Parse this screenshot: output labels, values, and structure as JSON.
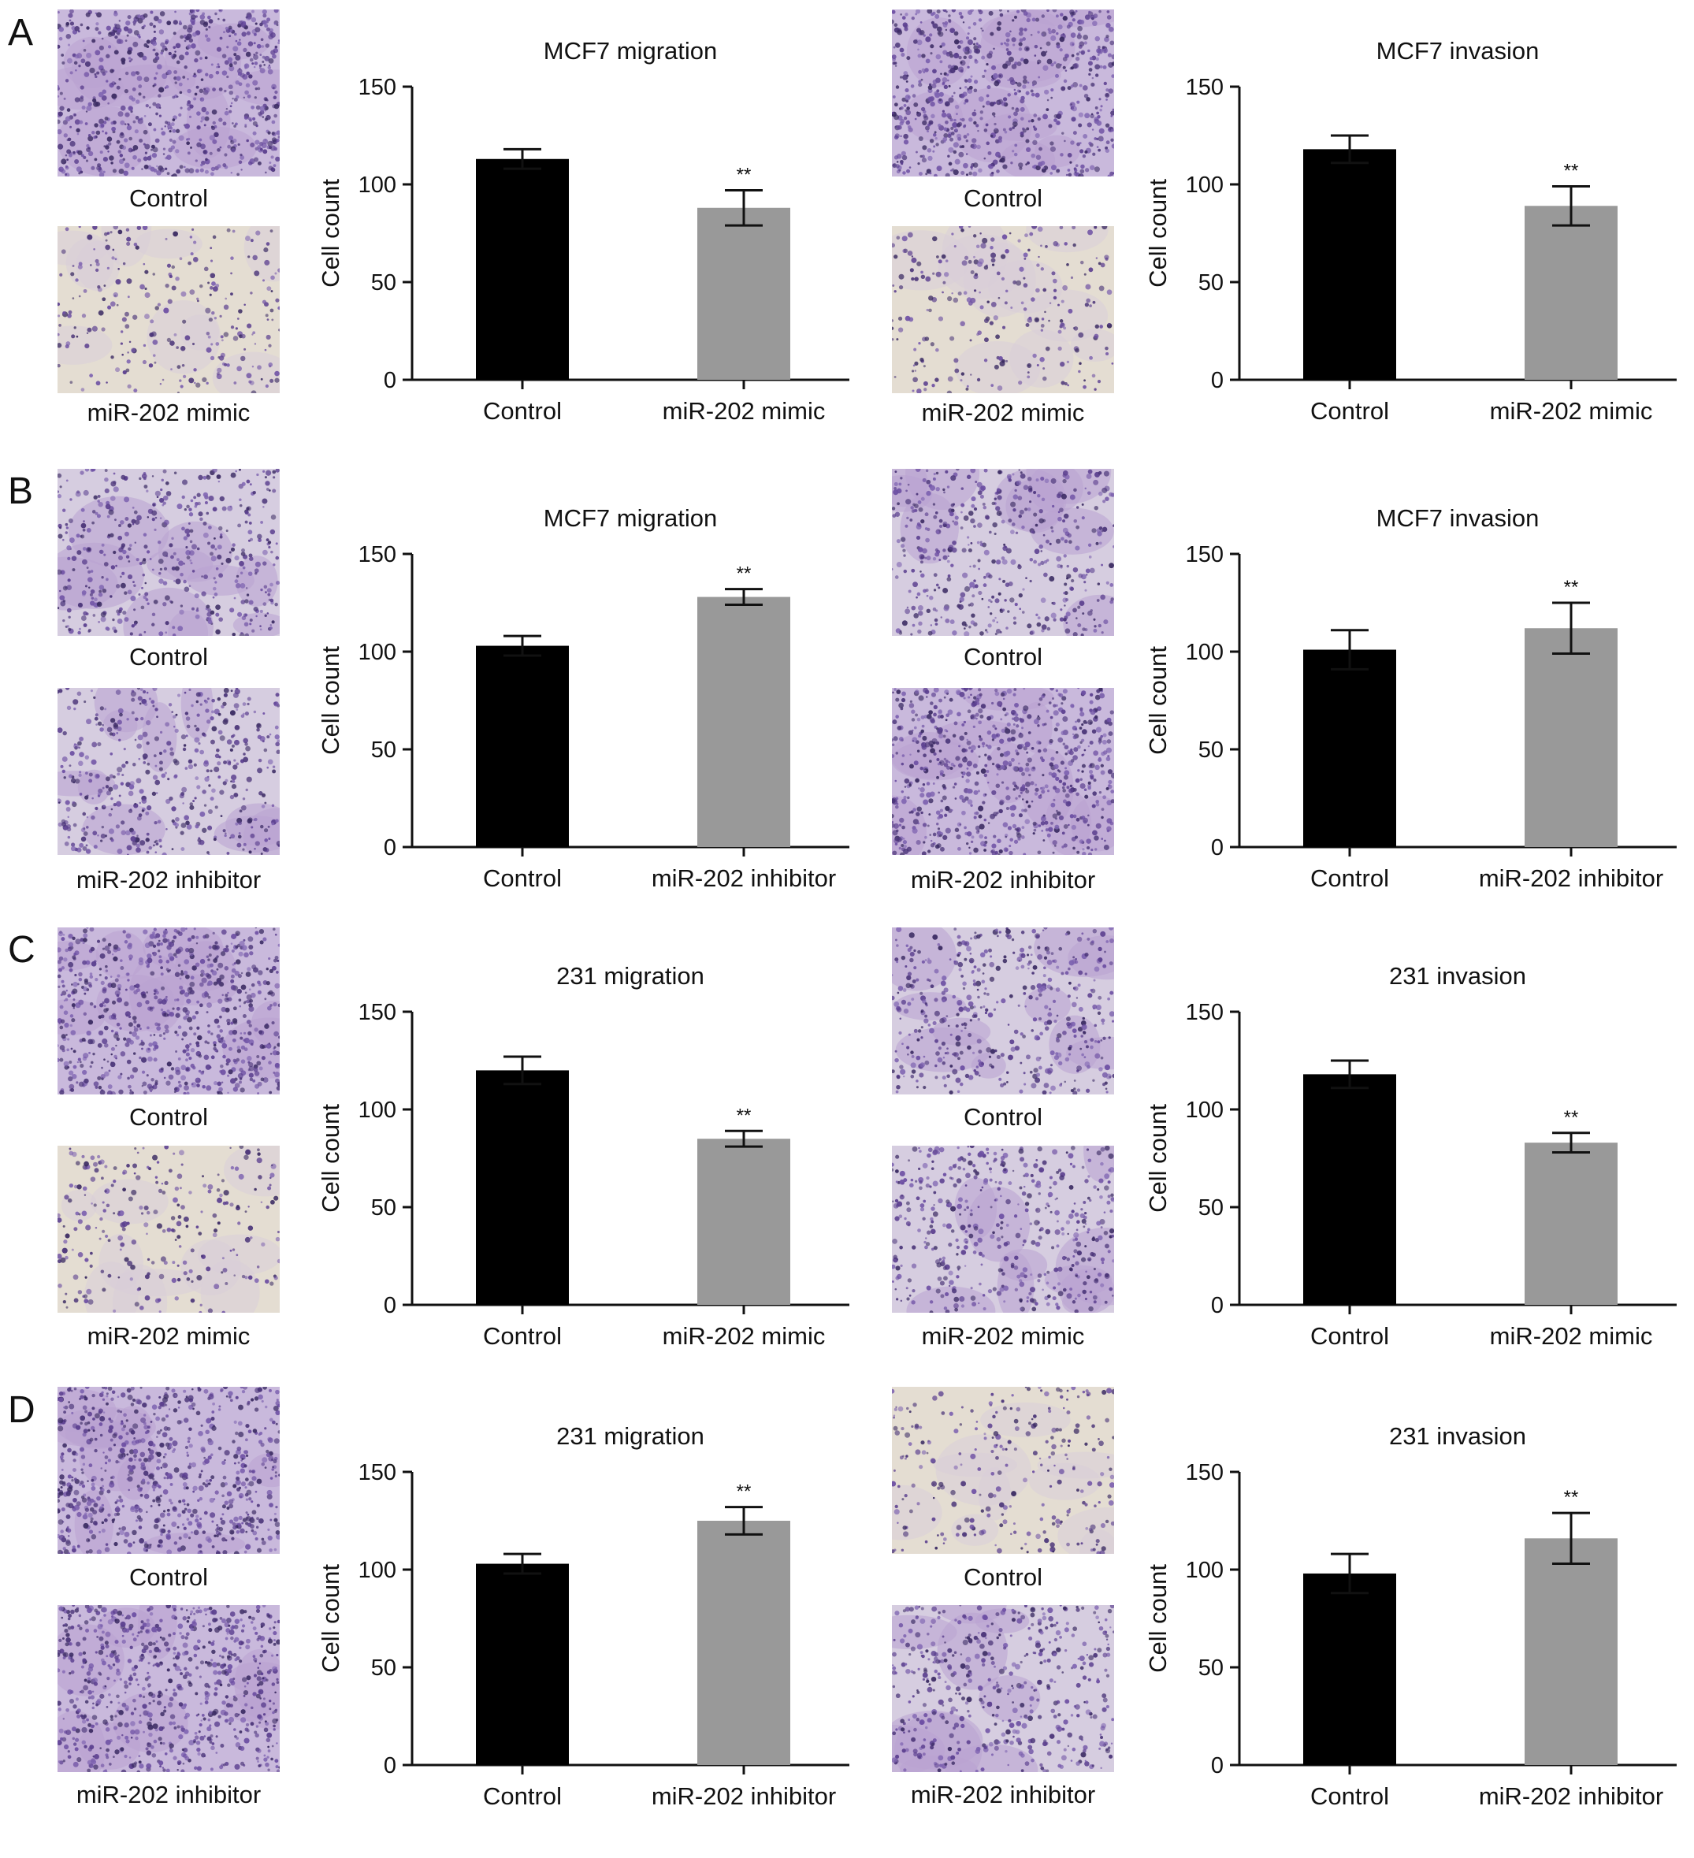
{
  "panels": [
    {
      "letter": "A",
      "images": [
        {
          "caption": "Control",
          "shade": "dense"
        },
        {
          "caption": "miR-202 mimic",
          "shade": "sparse"
        },
        {
          "caption": "Control",
          "shade": "dense"
        },
        {
          "caption": "miR-202 mimic",
          "shade": "sparse"
        }
      ]
    },
    {
      "letter": "B",
      "images": [
        {
          "caption": "Control",
          "shade": "medium"
        },
        {
          "caption": "miR-202 inhibitor",
          "shade": "medium"
        },
        {
          "caption": "Control",
          "shade": "medium"
        },
        {
          "caption": "miR-202 inhibitor",
          "shade": "dense"
        }
      ]
    },
    {
      "letter": "C",
      "images": [
        {
          "caption": "Control",
          "shade": "dense"
        },
        {
          "caption": "miR-202 mimic",
          "shade": "sparse"
        },
        {
          "caption": "Control",
          "shade": "medium"
        },
        {
          "caption": "miR-202 mimic",
          "shade": "medium"
        }
      ]
    },
    {
      "letter": "D",
      "images": [
        {
          "caption": "Control",
          "shade": "dense"
        },
        {
          "caption": "miR-202 inhibitor",
          "shade": "dense"
        },
        {
          "caption": "Control",
          "shade": "sparse"
        },
        {
          "caption": "miR-202 inhibitor",
          "shade": "medium"
        }
      ]
    }
  ],
  "chart_data": [
    {
      "type": "bar",
      "panel": "A",
      "title": "MCF7 migration",
      "ylabel": "Cell count",
      "ylim": [
        0,
        150
      ],
      "yticks": [
        0,
        50,
        100,
        150
      ],
      "categories": [
        "Control",
        "miR-202 mimic"
      ],
      "values": [
        113,
        88
      ],
      "errors": [
        5,
        9
      ],
      "colors": [
        "#000000",
        "#999999"
      ],
      "significance": [
        "",
        "**"
      ]
    },
    {
      "type": "bar",
      "panel": "A",
      "title": "MCF7 invasion",
      "ylabel": "Cell count",
      "ylim": [
        0,
        150
      ],
      "yticks": [
        0,
        50,
        100,
        150
      ],
      "categories": [
        "Control",
        "miR-202 mimic"
      ],
      "values": [
        118,
        89
      ],
      "errors": [
        7,
        10
      ],
      "colors": [
        "#000000",
        "#999999"
      ],
      "significance": [
        "",
        "**"
      ]
    },
    {
      "type": "bar",
      "panel": "B",
      "title": "MCF7 migration",
      "ylabel": "Cell count",
      "ylim": [
        0,
        150
      ],
      "yticks": [
        0,
        50,
        100,
        150
      ],
      "categories": [
        "Control",
        "miR-202 inhibitor"
      ],
      "values": [
        103,
        128
      ],
      "errors": [
        5,
        4
      ],
      "colors": [
        "#000000",
        "#999999"
      ],
      "significance": [
        "",
        "**"
      ]
    },
    {
      "type": "bar",
      "panel": "B",
      "title": "MCF7 invasion",
      "ylabel": "Cell count",
      "ylim": [
        0,
        150
      ],
      "yticks": [
        0,
        50,
        100,
        150
      ],
      "categories": [
        "Control",
        "miR-202 inhibitor"
      ],
      "values": [
        101,
        112
      ],
      "errors": [
        10,
        13
      ],
      "colors": [
        "#000000",
        "#999999"
      ],
      "significance": [
        "",
        "**"
      ]
    },
    {
      "type": "bar",
      "panel": "C",
      "title": "231 migration",
      "ylabel": "Cell count",
      "ylim": [
        0,
        150
      ],
      "yticks": [
        0,
        50,
        100,
        150
      ],
      "categories": [
        "Control",
        "miR-202 mimic"
      ],
      "values": [
        120,
        85
      ],
      "errors": [
        7,
        4
      ],
      "colors": [
        "#000000",
        "#999999"
      ],
      "significance": [
        "",
        "**"
      ]
    },
    {
      "type": "bar",
      "panel": "C",
      "title": "231 invasion",
      "ylabel": "Cell count",
      "ylim": [
        0,
        150
      ],
      "yticks": [
        0,
        50,
        100,
        150
      ],
      "categories": [
        "Control",
        "miR-202 mimic"
      ],
      "values": [
        118,
        83
      ],
      "errors": [
        7,
        5
      ],
      "colors": [
        "#000000",
        "#999999"
      ],
      "significance": [
        "",
        "**"
      ]
    },
    {
      "type": "bar",
      "panel": "D",
      "title": "231 migration",
      "ylabel": "Cell count",
      "ylim": [
        0,
        150
      ],
      "yticks": [
        0,
        50,
        100,
        150
      ],
      "categories": [
        "Control",
        "miR-202 inhibitor"
      ],
      "values": [
        103,
        125
      ],
      "errors": [
        5,
        7
      ],
      "colors": [
        "#000000",
        "#999999"
      ],
      "significance": [
        "",
        "**"
      ]
    },
    {
      "type": "bar",
      "panel": "D",
      "title": "231 invasion",
      "ylabel": "Cell count",
      "ylim": [
        0,
        150
      ],
      "yticks": [
        0,
        50,
        100,
        150
      ],
      "categories": [
        "Control",
        "miR-202 inhibitor"
      ],
      "values": [
        98,
        116
      ],
      "errors": [
        10,
        13
      ],
      "colors": [
        "#000000",
        "#999999"
      ],
      "significance": [
        "",
        "**"
      ]
    }
  ]
}
